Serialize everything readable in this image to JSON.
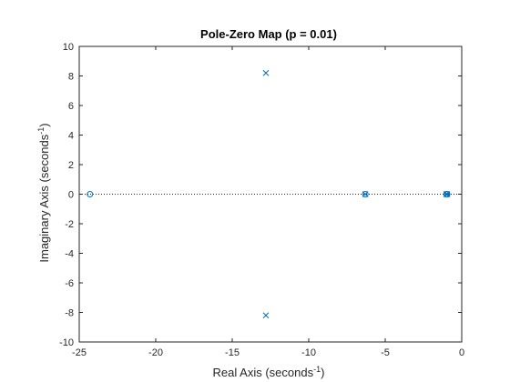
{
  "chart_data": {
    "type": "scatter",
    "title": "Pole-Zero Map (p = 0.01)",
    "xlabel": {
      "text": "Real Axis (seconds",
      "sup": "-1",
      "close": ")"
    },
    "ylabel": {
      "text": "Imaginary Axis (seconds",
      "sup": "-1",
      "close": ")"
    },
    "xlim": [
      -25,
      0
    ],
    "ylim": [
      -10,
      10
    ],
    "xticks": [
      -25,
      -20,
      -15,
      -10,
      -5,
      0
    ],
    "yticks": [
      -10,
      -8,
      -6,
      -4,
      -2,
      0,
      2,
      4,
      6,
      8,
      10
    ],
    "xtick_labels": [
      "-25",
      "-20",
      "-15",
      "-10",
      "-5",
      "0"
    ],
    "ytick_labels": [
      "-10",
      "-8",
      "-6",
      "-4",
      "-2",
      "0",
      "2",
      "4",
      "6",
      "8",
      "10"
    ],
    "grid": false,
    "zero_line": true,
    "series": [
      {
        "marker": "o",
        "x": [
          -24.3,
          -6.3,
          -1.0,
          -0.95
        ],
        "y": [
          0,
          0,
          0,
          0
        ]
      },
      {
        "marker": "x",
        "x": [
          -12.8,
          -12.8,
          -6.3,
          -1.0,
          -0.95
        ],
        "y": [
          8.2,
          -8.2,
          0,
          0,
          0
        ]
      }
    ],
    "colors": {
      "marker": "#0072BD",
      "axes": "#262626",
      "zero_line": "#262626"
    }
  }
}
